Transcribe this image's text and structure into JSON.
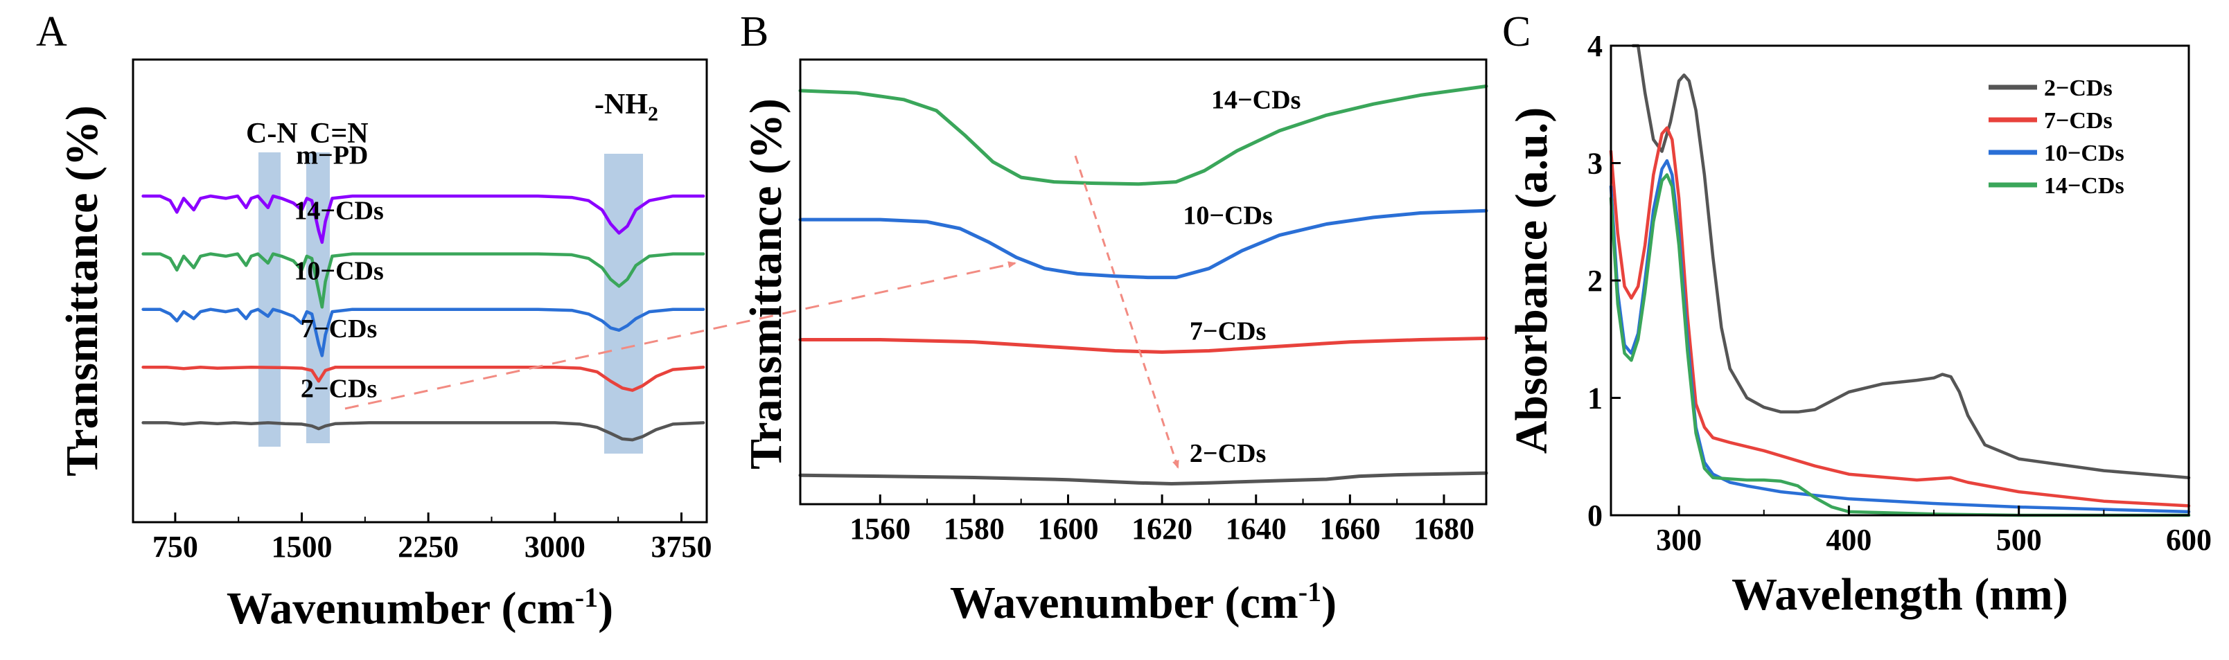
{
  "panel_letters": {
    "a": "A",
    "b": "B",
    "c": "C"
  },
  "panel_a": {
    "xlabel": "Wavenumber (cm",
    "xlabel_sup": "-1",
    "xlabel_end": ")",
    "ylabel": "Transmittance (%)",
    "band_labels": {
      "cn": "C-N",
      "cn_double": "C=N",
      "nh2": "-NH",
      "nh2_sub": "2"
    }
  },
  "panel_b": {
    "xlabel": "Wavenumber (cm",
    "xlabel_sup": "-1",
    "xlabel_end": ")",
    "ylabel": "Transmittance (%)"
  },
  "panel_c": {
    "xlabel": "Wavelength (nm)",
    "ylabel": "Absorbance (a.u.)"
  },
  "chart_data": [
    {
      "type": "line",
      "title": "",
      "xlabel": "Wavenumber (cm-1)",
      "ylabel": "Transmittance (%)",
      "xlim": [
        500,
        3900
      ],
      "ylim": [
        0,
        100
      ],
      "xticks": [
        750,
        1500,
        2250,
        3000,
        3750
      ],
      "xtick_labels": [
        "750",
        "1500",
        "2250",
        "3000",
        "3750"
      ],
      "series": [
        {
          "name": "m−PD",
          "color": "#8b00ff",
          "label_at": [
            1680,
            77.5
          ],
          "x": [
            560,
            660,
            720,
            760,
            800,
            860,
            900,
            960,
            1050,
            1120,
            1170,
            1200,
            1240,
            1300,
            1330,
            1380,
            1450,
            1500,
            1530,
            1560,
            1600,
            1620,
            1640,
            1680,
            1800,
            2200,
            2600,
            2900,
            3100,
            3200,
            3280,
            3330,
            3380,
            3430,
            3480,
            3560,
            3700,
            3880
          ],
          "y": [
            70.5,
            70.5,
            69.5,
            67,
            70,
            67.5,
            70,
            70.5,
            70,
            70.5,
            68,
            70,
            70.5,
            68,
            70.5,
            70,
            69,
            67.5,
            70,
            69.5,
            63,
            60.5,
            65,
            70,
            70.5,
            70.5,
            70.5,
            70.5,
            70.2,
            69.5,
            67.5,
            64.5,
            62.5,
            64,
            67.5,
            69.5,
            70.5,
            70.5
          ]
        },
        {
          "name": "14−CDs",
          "color": "#3aa65a",
          "label_at": [
            1720,
            65.5
          ],
          "x": [
            560,
            660,
            720,
            760,
            800,
            860,
            900,
            960,
            1050,
            1120,
            1170,
            1200,
            1240,
            1300,
            1330,
            1380,
            1450,
            1500,
            1530,
            1560,
            1600,
            1620,
            1640,
            1680,
            1800,
            2200,
            2600,
            2900,
            3100,
            3200,
            3280,
            3330,
            3380,
            3430,
            3480,
            3560,
            3700,
            3880
          ],
          "y": [
            58,
            58,
            57,
            54.5,
            57.5,
            55,
            57.5,
            58,
            57.5,
            58,
            55.5,
            57.5,
            58,
            56,
            58,
            57.5,
            56.5,
            54.5,
            57.5,
            57,
            50,
            46.5,
            52,
            57.5,
            58,
            58,
            58,
            58,
            57.8,
            57,
            55,
            52.5,
            51,
            52.5,
            55.5,
            57.5,
            58,
            58
          ]
        },
        {
          "name": "10−CDs",
          "color": "#2a6fd6",
          "label_at": [
            1720,
            52.5
          ],
          "x": [
            560,
            660,
            720,
            760,
            800,
            860,
            900,
            960,
            1050,
            1120,
            1170,
            1200,
            1240,
            1300,
            1330,
            1380,
            1450,
            1500,
            1530,
            1560,
            1600,
            1620,
            1640,
            1680,
            1800,
            2200,
            2600,
            2900,
            3100,
            3200,
            3280,
            3330,
            3380,
            3430,
            3480,
            3560,
            3700,
            3880
          ],
          "y": [
            46,
            46,
            45,
            43.5,
            45.5,
            44,
            45.5,
            46,
            45.5,
            46,
            44,
            45.5,
            46,
            44.5,
            46,
            45.5,
            44.5,
            43,
            45.5,
            45,
            38.5,
            36,
            40.5,
            45.5,
            46,
            46,
            46,
            46,
            45.8,
            45,
            43.5,
            42,
            41.5,
            42.5,
            44,
            45.5,
            46,
            46
          ]
        },
        {
          "name": "7−CDs",
          "color": "#e8423c",
          "label_at": [
            1720,
            40
          ],
          "x": [
            560,
            700,
            800,
            900,
            1000,
            1200,
            1400,
            1500,
            1560,
            1600,
            1640,
            1700,
            1900,
            2300,
            2700,
            3000,
            3150,
            3250,
            3330,
            3400,
            3460,
            3520,
            3600,
            3700,
            3880
          ],
          "y": [
            33.5,
            33.5,
            33.2,
            33.5,
            33.3,
            33.5,
            33.4,
            33.3,
            32.8,
            30.5,
            32.8,
            33.5,
            33.5,
            33.5,
            33.5,
            33.5,
            33.3,
            32.5,
            30.5,
            29,
            28.5,
            29.5,
            31.5,
            33,
            33.5
          ]
        },
        {
          "name": "2−CDs",
          "color": "#555555",
          "label_at": [
            1720,
            27
          ],
          "x": [
            560,
            700,
            800,
            900,
            1000,
            1100,
            1200,
            1300,
            1400,
            1500,
            1560,
            1600,
            1640,
            1700,
            1900,
            2300,
            2700,
            3000,
            3150,
            3250,
            3330,
            3400,
            3460,
            3520,
            3600,
            3700,
            3880
          ],
          "y": [
            21.5,
            21.5,
            21.2,
            21.5,
            21.3,
            21.5,
            21.3,
            21.5,
            21.3,
            21.2,
            20.8,
            20.2,
            20.8,
            21.3,
            21.5,
            21.5,
            21.5,
            21.5,
            21.2,
            20.5,
            19.2,
            18,
            17.8,
            18.5,
            20,
            21.2,
            21.5
          ]
        }
      ],
      "annotations": [
        "C-N",
        "C=N",
        "-NH2"
      ]
    },
    {
      "type": "line",
      "title": "",
      "xlabel": "Wavenumber (cm-1)",
      "ylabel": "Transmittance (%)",
      "xlim": [
        1543,
        1689
      ],
      "ylim": [
        0,
        100
      ],
      "xticks": [
        1560,
        1580,
        1600,
        1620,
        1640,
        1660,
        1680
      ],
      "xtick_labels": [
        "1560",
        "1580",
        "1600",
        "1620",
        "1640",
        "1660",
        "1680"
      ],
      "series": [
        {
          "name": "14−CDs",
          "color": "#3aa65a",
          "label_at": [
            1640,
            89
          ],
          "x": [
            1543,
            1555,
            1565,
            1572,
            1578,
            1584,
            1590,
            1597,
            1605,
            1615,
            1623,
            1629,
            1636,
            1645,
            1655,
            1665,
            1675,
            1689
          ],
          "y": [
            93,
            92.5,
            91,
            88.5,
            83,
            77,
            73.5,
            72.5,
            72.2,
            72,
            72.5,
            75,
            79.5,
            84,
            87.5,
            90,
            92,
            94
          ]
        },
        {
          "name": "10−CDs",
          "color": "#2a6fd6",
          "label_at": [
            1634,
            63
          ],
          "x": [
            1543,
            1560,
            1570,
            1577,
            1583,
            1589,
            1595,
            1602,
            1610,
            1617,
            1623,
            1630,
            1637,
            1645,
            1655,
            1665,
            1675,
            1689
          ],
          "y": [
            64,
            64,
            63.5,
            62,
            59,
            55.5,
            53,
            51.8,
            51.3,
            51,
            51,
            53,
            57,
            60.5,
            63,
            64.5,
            65.5,
            66
          ]
        },
        {
          "name": "7−CDs",
          "color": "#e8423c",
          "label_at": [
            1634,
            37
          ],
          "x": [
            1543,
            1560,
            1580,
            1595,
            1610,
            1620,
            1630,
            1645,
            1660,
            1675,
            1689
          ],
          "y": [
            37,
            37,
            36.5,
            35.5,
            34.5,
            34.2,
            34.5,
            35.5,
            36.5,
            37,
            37.3
          ]
        },
        {
          "name": "2−CDs",
          "color": "#555555",
          "label_at": [
            1634,
            9.5
          ],
          "x": [
            1543,
            1560,
            1580,
            1600,
            1615,
            1622,
            1630,
            1645,
            1655,
            1662,
            1670,
            1689
          ],
          "y": [
            6.5,
            6.3,
            6,
            5.5,
            4.8,
            4.6,
            4.8,
            5.3,
            5.6,
            6.3,
            6.6,
            7
          ]
        }
      ],
      "annotations": [
        "arrow 1597→1624 (downward trend)"
      ]
    },
    {
      "type": "line",
      "title": "",
      "xlabel": "Wavelength (nm)",
      "ylabel": "Absorbance (a.u.)",
      "xlim": [
        260,
        600
      ],
      "ylim": [
        0,
        4
      ],
      "xticks": [
        300,
        400,
        500,
        600
      ],
      "xtick_labels": [
        "300",
        "400",
        "500",
        "600"
      ],
      "yticks": [
        0,
        1,
        2,
        3,
        4
      ],
      "ytick_labels": [
        "0",
        "1",
        "2",
        "3",
        "4"
      ],
      "legend": "top-right",
      "series": [
        {
          "name": "2−CDs",
          "color": "#555555",
          "x": [
            273,
            276,
            280,
            285,
            290,
            295,
            300,
            303,
            306,
            310,
            315,
            320,
            325,
            330,
            340,
            350,
            360,
            370,
            380,
            400,
            420,
            440,
            450,
            455,
            460,
            465,
            470,
            480,
            500,
            550,
            600
          ],
          "y": [
            4.4,
            4.0,
            3.6,
            3.2,
            3.1,
            3.35,
            3.7,
            3.75,
            3.7,
            3.45,
            2.9,
            2.2,
            1.6,
            1.25,
            1.0,
            0.92,
            0.88,
            0.88,
            0.9,
            1.05,
            1.12,
            1.15,
            1.17,
            1.2,
            1.18,
            1.05,
            0.85,
            0.6,
            0.48,
            0.38,
            0.32
          ]
        },
        {
          "name": "7−CDs",
          "color": "#e8423c",
          "x": [
            260,
            264,
            268,
            272,
            276,
            280,
            285,
            290,
            293,
            296,
            300,
            305,
            310,
            315,
            320,
            330,
            350,
            380,
            400,
            440,
            460,
            470,
            500,
            550,
            600
          ],
          "y": [
            3.1,
            2.4,
            1.95,
            1.85,
            1.95,
            2.3,
            2.9,
            3.25,
            3.3,
            3.2,
            2.7,
            1.7,
            0.95,
            0.75,
            0.66,
            0.62,
            0.55,
            0.42,
            0.35,
            0.3,
            0.32,
            0.28,
            0.2,
            0.12,
            0.08
          ]
        },
        {
          "name": "10−CDs",
          "color": "#2a6fd6",
          "x": [
            260,
            264,
            268,
            272,
            276,
            280,
            285,
            290,
            293,
            296,
            300,
            305,
            310,
            315,
            320,
            330,
            340,
            360,
            400,
            450,
            500,
            550,
            600
          ],
          "y": [
            2.8,
            1.9,
            1.45,
            1.38,
            1.55,
            2.0,
            2.6,
            2.95,
            3.02,
            2.9,
            2.4,
            1.5,
            0.75,
            0.45,
            0.35,
            0.28,
            0.25,
            0.2,
            0.14,
            0.1,
            0.07,
            0.05,
            0.03
          ]
        },
        {
          "name": "14−CDs",
          "color": "#3aa65a",
          "x": [
            260,
            264,
            268,
            272,
            276,
            280,
            285,
            290,
            293,
            296,
            300,
            305,
            310,
            315,
            320,
            330,
            340,
            350,
            360,
            370,
            380,
            390,
            400,
            450,
            500,
            550,
            600
          ],
          "y": [
            2.7,
            1.8,
            1.38,
            1.32,
            1.5,
            1.9,
            2.5,
            2.85,
            2.9,
            2.8,
            2.3,
            1.4,
            0.7,
            0.4,
            0.32,
            0.31,
            0.3,
            0.3,
            0.29,
            0.25,
            0.15,
            0.07,
            0.03,
            0.01,
            0.0,
            0.0,
            0.0
          ]
        }
      ]
    }
  ]
}
